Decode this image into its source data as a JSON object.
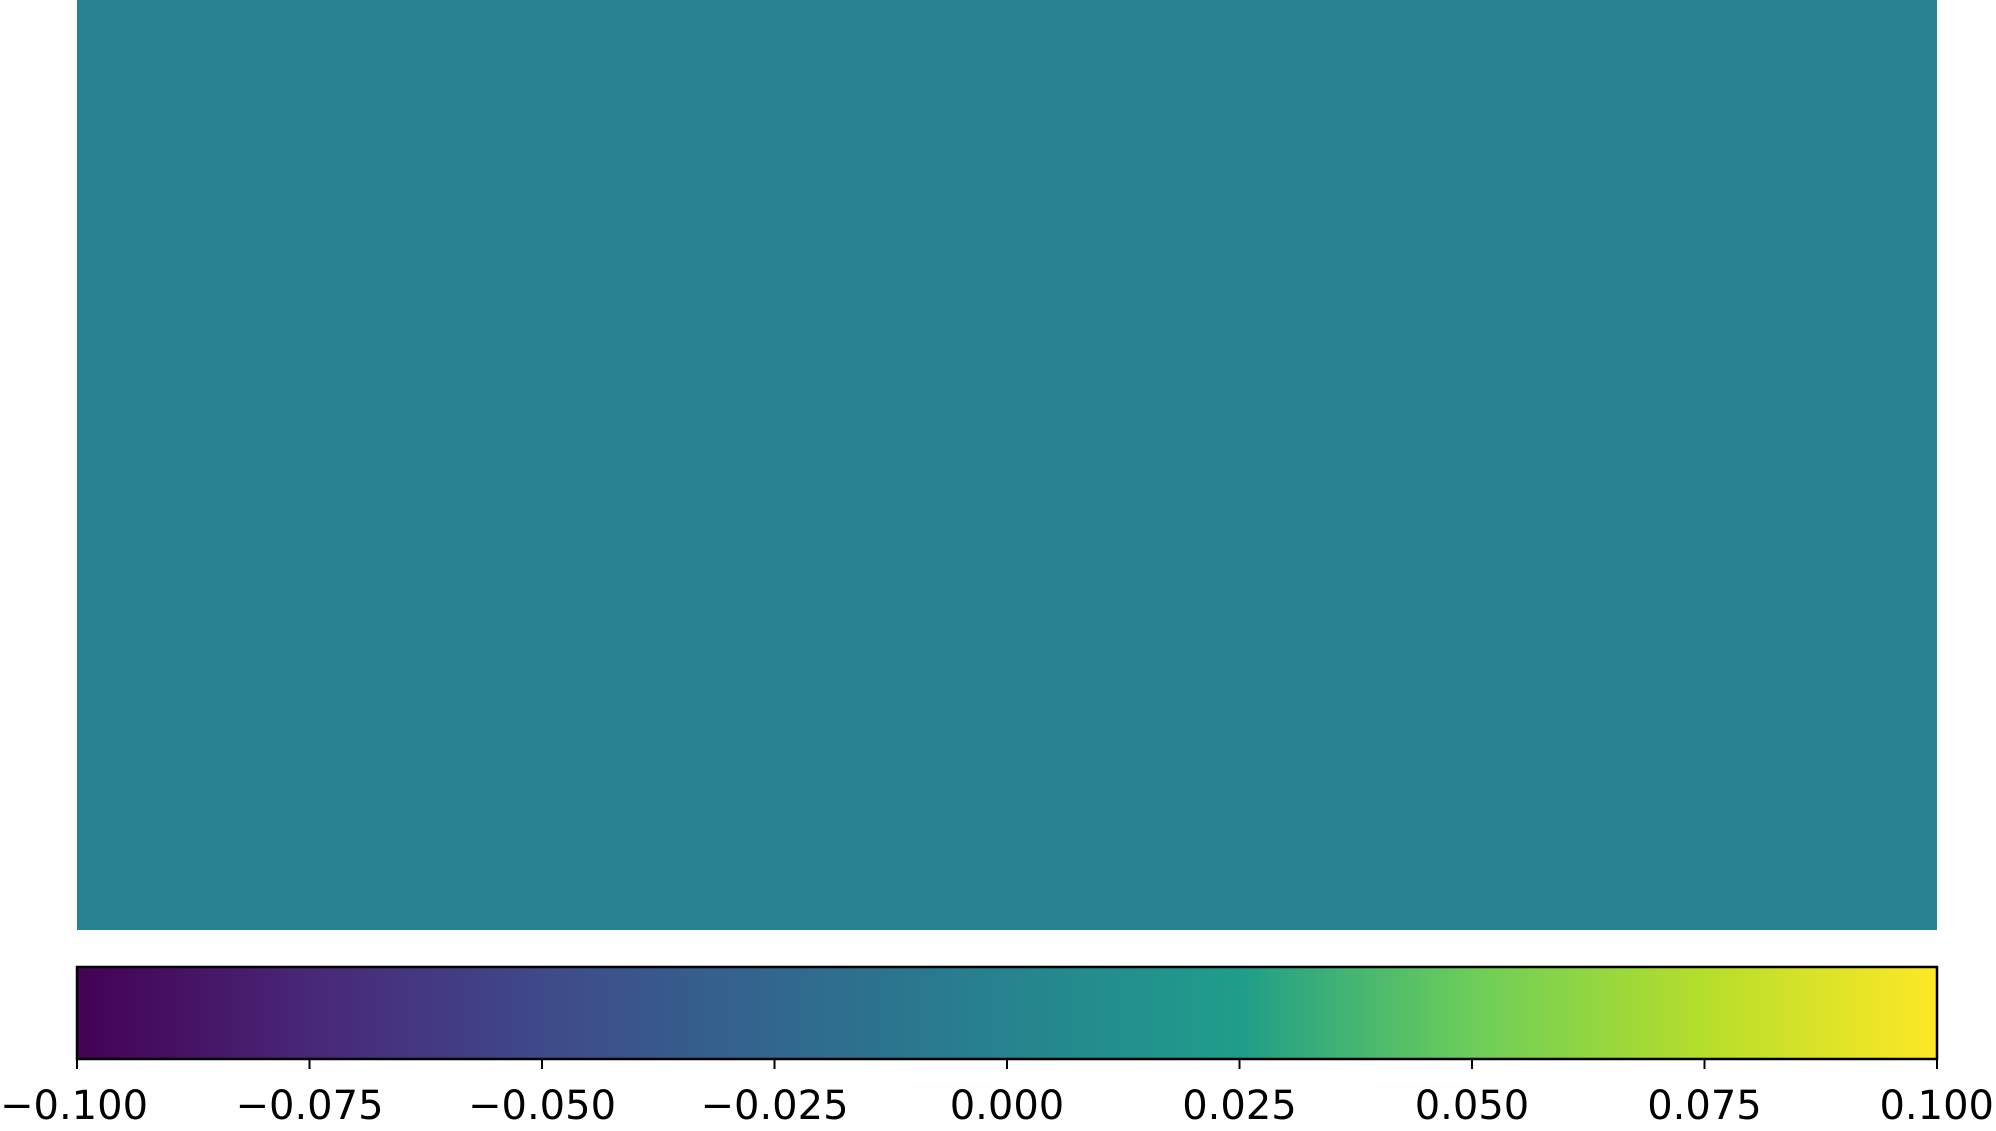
{
  "chart_data": {
    "type": "heatmap",
    "values": [
      [
        0.0
      ]
    ],
    "colormap": "viridis",
    "colormap_stops": [
      "#440154",
      "#482777",
      "#3f4a8a",
      "#31678e",
      "#26838f",
      "#1f9d8a",
      "#6cce5a",
      "#b6de2b",
      "#fee825"
    ],
    "grid": false,
    "colorbar": {
      "orientation": "horizontal",
      "placement": "bottom",
      "range": [
        -0.1,
        0.1
      ],
      "ticks": [
        -0.1,
        -0.075,
        -0.05,
        -0.025,
        0.0,
        0.025,
        0.05,
        0.075,
        0.1
      ],
      "tick_labels": [
        "−0.100",
        "−0.075",
        "−0.050",
        "−0.025",
        "0.000",
        "0.025",
        "0.050",
        "0.075",
        "0.100"
      ]
    }
  }
}
